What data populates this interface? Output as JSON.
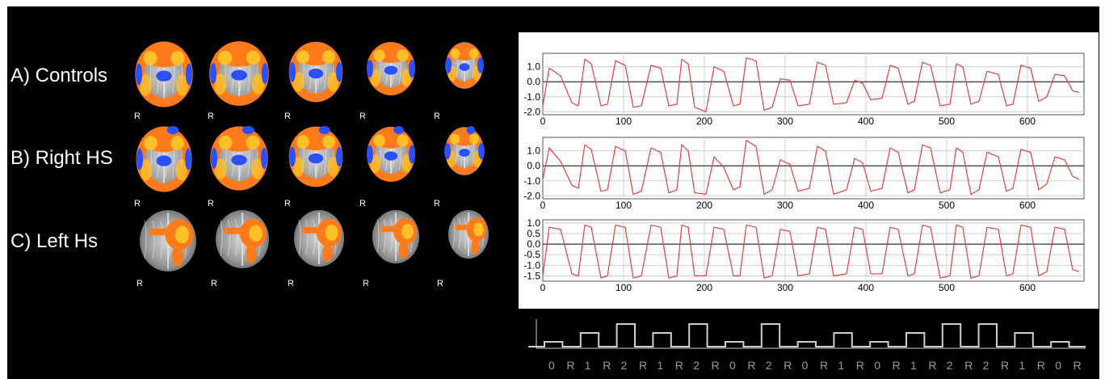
{
  "rows": [
    {
      "label": "A) Controls",
      "orientation_marks": [
        "R",
        "R",
        "R",
        "R",
        "R"
      ]
    },
    {
      "label": "B) Right HS",
      "orientation_marks": [
        "R",
        "R",
        "R",
        "R",
        "R"
      ]
    },
    {
      "label": "C) Left Hs",
      "orientation_marks": [
        "R",
        "R",
        "R",
        "R",
        "R"
      ]
    }
  ],
  "colors": {
    "activation": "#ff7a1a",
    "activation_core": "#ffc028",
    "deactivation": "#2a50ff",
    "timecourse": "#e04040",
    "paradigm": "#cfcfcf"
  },
  "paradigm": {
    "labels": [
      "0",
      "R",
      "1",
      "R",
      "2",
      "R",
      "1",
      "R",
      "2",
      "R",
      "0",
      "R",
      "2",
      "R",
      "0",
      "R",
      "1",
      "R",
      "0",
      "R",
      "1",
      "R",
      "2",
      "R",
      "2",
      "R",
      "1",
      "R",
      "0",
      "R"
    ],
    "levels": [
      0,
      1,
      2,
      1,
      2,
      0,
      2,
      0,
      1,
      0,
      1,
      2,
      2,
      1,
      0
    ]
  },
  "chart_data": [
    {
      "type": "line",
      "name": "A",
      "xlim": [
        0,
        670
      ],
      "ylim": [
        -2.2,
        1.9
      ],
      "xticks": [
        "0",
        "100",
        "200",
        "300",
        "400",
        "500",
        "600"
      ],
      "yticks": [
        "1.0",
        "0.0",
        "-1.0",
        "-2.0"
      ],
      "ytick_values": [
        1.0,
        0.0,
        -1.0,
        -2.0
      ],
      "x": [
        0,
        8,
        22,
        36,
        44,
        52,
        60,
        72,
        80,
        90,
        102,
        112,
        122,
        134,
        146,
        156,
        166,
        172,
        180,
        188,
        202,
        212,
        224,
        236,
        244,
        252,
        264,
        274,
        284,
        294,
        306,
        316,
        330,
        340,
        350,
        360,
        376,
        386,
        396,
        406,
        420,
        430,
        440,
        452,
        460,
        470,
        480,
        492,
        504,
        512,
        520,
        530,
        540,
        550,
        564,
        574,
        582,
        592,
        604,
        614,
        624,
        634,
        646,
        656,
        664
      ],
      "y": [
        -1.6,
        0.9,
        0.4,
        -1.4,
        -1.6,
        1.5,
        1.2,
        -1.6,
        -1.5,
        1.4,
        1.1,
        -1.7,
        -1.6,
        1.1,
        0.9,
        -1.6,
        -1.5,
        1.5,
        1.2,
        -1.7,
        -2.0,
        1.0,
        0.7,
        -1.6,
        -1.5,
        1.6,
        1.4,
        -1.9,
        -1.7,
        0.2,
        0.1,
        -1.6,
        -1.5,
        1.3,
        1.1,
        -1.5,
        -1.4,
        0.1,
        -0.1,
        -1.2,
        -1.1,
        1.1,
        0.9,
        -1.5,
        -1.3,
        1.3,
        1.1,
        -1.6,
        -1.5,
        1.2,
        1.0,
        -1.5,
        -1.3,
        0.7,
        0.5,
        -1.6,
        -1.5,
        1.1,
        0.9,
        -1.3,
        -1.0,
        0.5,
        0.4,
        -0.6,
        -0.7
      ]
    },
    {
      "type": "line",
      "name": "B",
      "xlim": [
        0,
        670
      ],
      "ylim": [
        -2.2,
        1.9
      ],
      "xticks": [
        "0",
        "100",
        "200",
        "300",
        "400",
        "500",
        "600"
      ],
      "yticks": [
        "1.0",
        "0.0",
        "-1.0",
        "-2.0"
      ],
      "ytick_values": [
        1.0,
        0.0,
        -1.0,
        -2.0
      ],
      "x": [
        0,
        8,
        22,
        36,
        44,
        52,
        60,
        72,
        80,
        90,
        102,
        112,
        122,
        134,
        146,
        156,
        166,
        172,
        180,
        188,
        202,
        212,
        224,
        236,
        244,
        252,
        264,
        274,
        284,
        294,
        306,
        316,
        330,
        340,
        350,
        360,
        376,
        386,
        396,
        406,
        420,
        430,
        440,
        452,
        460,
        470,
        480,
        492,
        504,
        512,
        520,
        530,
        540,
        550,
        564,
        574,
        582,
        592,
        604,
        614,
        624,
        634,
        646,
        656,
        664
      ],
      "y": [
        -0.9,
        1.2,
        0.3,
        -1.3,
        -1.5,
        1.4,
        1.1,
        -1.7,
        -1.6,
        1.3,
        1.0,
        -1.9,
        -1.7,
        1.2,
        0.9,
        -1.8,
        -1.6,
        1.4,
        1.0,
        -1.8,
        -1.9,
        0.6,
        -0.1,
        -1.6,
        -1.4,
        1.7,
        1.3,
        -1.9,
        -1.6,
        0.4,
        0.1,
        -1.7,
        -1.5,
        1.3,
        1.0,
        -1.9,
        -1.6,
        0.5,
        0.2,
        -1.7,
        -1.5,
        1.2,
        0.9,
        -1.8,
        -1.6,
        1.4,
        1.2,
        -1.8,
        -1.6,
        1.2,
        0.9,
        -1.9,
        -1.6,
        0.9,
        0.6,
        -1.7,
        -1.5,
        1.1,
        0.9,
        -1.6,
        -1.2,
        0.6,
        0.4,
        -0.7,
        -0.9
      ]
    },
    {
      "type": "line",
      "name": "C",
      "xlim": [
        0,
        670
      ],
      "ylim": [
        -1.75,
        1.15
      ],
      "xticks": [
        "0",
        "100",
        "200",
        "300",
        "400",
        "500",
        "600"
      ],
      "yticks": [
        "1.0",
        "0.5",
        "0.0",
        "-0.5",
        "-1.0",
        "-1.5"
      ],
      "ytick_values": [
        1.0,
        0.5,
        0.0,
        -0.5,
        -1.0,
        -1.5
      ],
      "x": [
        0,
        8,
        22,
        36,
        44,
        52,
        60,
        72,
        80,
        90,
        102,
        112,
        122,
        134,
        146,
        156,
        166,
        172,
        180,
        188,
        202,
        212,
        224,
        236,
        244,
        252,
        264,
        274,
        284,
        294,
        306,
        316,
        330,
        340,
        350,
        360,
        376,
        386,
        396,
        406,
        420,
        430,
        440,
        452,
        460,
        470,
        480,
        492,
        504,
        512,
        520,
        530,
        540,
        550,
        564,
        574,
        582,
        592,
        604,
        614,
        624,
        634,
        646,
        656,
        664
      ],
      "y": [
        -1.5,
        0.8,
        0.7,
        -1.4,
        -1.5,
        0.9,
        0.8,
        -1.6,
        -1.5,
        0.9,
        0.8,
        -1.6,
        -1.5,
        0.9,
        0.8,
        -1.6,
        -1.5,
        0.9,
        0.8,
        -1.5,
        -1.5,
        0.8,
        0.7,
        -1.5,
        -1.5,
        0.9,
        0.8,
        -1.6,
        -1.5,
        0.7,
        0.6,
        -1.5,
        -1.4,
        0.8,
        0.7,
        -1.5,
        -1.4,
        0.8,
        0.7,
        -1.4,
        -1.4,
        0.8,
        0.7,
        -1.5,
        -1.4,
        0.9,
        0.8,
        -1.6,
        -1.5,
        0.9,
        0.8,
        -1.6,
        -1.5,
        0.8,
        0.7,
        -1.5,
        -1.4,
        0.9,
        0.8,
        -1.5,
        -1.3,
        0.8,
        0.7,
        -1.2,
        -1.3
      ]
    }
  ]
}
